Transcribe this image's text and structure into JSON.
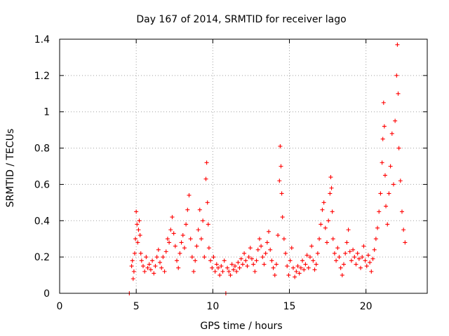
{
  "chart_data": {
    "type": "scatter",
    "title": "Day 167 of 2014, SRMTID for receiver lago",
    "xlabel": "GPS time / hours",
    "ylabel": "SRMTID / TECUs",
    "xlim": [
      0,
      24
    ],
    "ylim": [
      0,
      1.4
    ],
    "x_ticks": [
      0,
      5,
      10,
      15,
      20
    ],
    "x_tick_labels": [
      "0",
      "5",
      "10",
      "15",
      "20"
    ],
    "y_ticks": [
      0,
      0.2,
      0.4,
      0.6,
      0.8,
      1.0,
      1.2,
      1.4
    ],
    "y_tick_labels": [
      "0",
      "0.2",
      "0.4",
      "0.6",
      "0.8",
      "1",
      "1.2",
      "1.4"
    ],
    "grid": true,
    "marker": "+",
    "color": "#ff0000",
    "series": [
      {
        "name": "SRMTID",
        "points": [
          [
            4.55,
            0.0
          ],
          [
            10.85,
            0.0
          ],
          [
            4.7,
            0.15
          ],
          [
            4.75,
            0.18
          ],
          [
            4.8,
            0.08
          ],
          [
            4.85,
            0.12
          ],
          [
            4.9,
            0.22
          ],
          [
            4.95,
            0.3
          ],
          [
            5.0,
            0.45
          ],
          [
            5.05,
            0.38
          ],
          [
            5.1,
            0.28
          ],
          [
            5.15,
            0.35
          ],
          [
            5.2,
            0.4
          ],
          [
            5.25,
            0.32
          ],
          [
            5.3,
            0.22
          ],
          [
            5.35,
            0.18
          ],
          [
            5.45,
            0.15
          ],
          [
            5.55,
            0.12
          ],
          [
            5.65,
            0.2
          ],
          [
            5.75,
            0.14
          ],
          [
            5.85,
            0.16
          ],
          [
            5.95,
            0.13
          ],
          [
            6.05,
            0.18
          ],
          [
            6.15,
            0.11
          ],
          [
            6.25,
            0.15
          ],
          [
            6.35,
            0.2
          ],
          [
            6.45,
            0.24
          ],
          [
            6.55,
            0.17
          ],
          [
            6.65,
            0.14
          ],
          [
            6.75,
            0.2
          ],
          [
            6.85,
            0.12
          ],
          [
            6.95,
            0.23
          ],
          [
            7.05,
            0.3
          ],
          [
            7.15,
            0.28
          ],
          [
            7.25,
            0.35
          ],
          [
            7.35,
            0.42
          ],
          [
            7.45,
            0.33
          ],
          [
            7.55,
            0.26
          ],
          [
            7.65,
            0.18
          ],
          [
            7.75,
            0.14
          ],
          [
            7.85,
            0.22
          ],
          [
            7.95,
            0.28
          ],
          [
            8.05,
            0.32
          ],
          [
            8.15,
            0.25
          ],
          [
            8.25,
            0.38
          ],
          [
            8.35,
            0.46
          ],
          [
            8.45,
            0.54
          ],
          [
            8.55,
            0.3
          ],
          [
            8.65,
            0.2
          ],
          [
            8.75,
            0.12
          ],
          [
            8.85,
            0.18
          ],
          [
            8.95,
            0.26
          ],
          [
            9.05,
            0.35
          ],
          [
            9.15,
            0.46
          ],
          [
            9.25,
            0.3
          ],
          [
            9.35,
            0.4
          ],
          [
            9.45,
            0.2
          ],
          [
            9.55,
            0.63
          ],
          [
            9.6,
            0.72
          ],
          [
            9.65,
            0.5
          ],
          [
            9.7,
            0.38
          ],
          [
            9.75,
            0.25
          ],
          [
            9.85,
            0.18
          ],
          [
            9.95,
            0.14
          ],
          [
            10.05,
            0.2
          ],
          [
            10.15,
            0.12
          ],
          [
            10.25,
            0.16
          ],
          [
            10.35,
            0.14
          ],
          [
            10.45,
            0.1
          ],
          [
            10.55,
            0.15
          ],
          [
            10.65,
            0.12
          ],
          [
            10.75,
            0.18
          ],
          [
            10.95,
            0.14
          ],
          [
            11.05,
            0.12
          ],
          [
            11.15,
            0.1
          ],
          [
            11.25,
            0.16
          ],
          [
            11.35,
            0.13
          ],
          [
            11.45,
            0.15
          ],
          [
            11.55,
            0.12
          ],
          [
            11.65,
            0.17
          ],
          [
            11.75,
            0.14
          ],
          [
            11.85,
            0.19
          ],
          [
            11.95,
            0.16
          ],
          [
            12.05,
            0.22
          ],
          [
            12.15,
            0.18
          ],
          [
            12.25,
            0.15
          ],
          [
            12.35,
            0.2
          ],
          [
            12.45,
            0.25
          ],
          [
            12.55,
            0.19
          ],
          [
            12.65,
            0.16
          ],
          [
            12.75,
            0.12
          ],
          [
            12.85,
            0.18
          ],
          [
            12.95,
            0.24
          ],
          [
            13.05,
            0.3
          ],
          [
            13.15,
            0.26
          ],
          [
            13.25,
            0.2
          ],
          [
            13.35,
            0.16
          ],
          [
            13.45,
            0.22
          ],
          [
            13.55,
            0.28
          ],
          [
            13.65,
            0.34
          ],
          [
            13.75,
            0.24
          ],
          [
            13.85,
            0.18
          ],
          [
            13.95,
            0.14
          ],
          [
            14.05,
            0.1
          ],
          [
            14.15,
            0.16
          ],
          [
            14.25,
            0.32
          ],
          [
            14.35,
            0.62
          ],
          [
            14.4,
            0.81
          ],
          [
            14.45,
            0.7
          ],
          [
            14.5,
            0.55
          ],
          [
            14.55,
            0.42
          ],
          [
            14.65,
            0.3
          ],
          [
            14.75,
            0.22
          ],
          [
            14.85,
            0.15
          ],
          [
            14.95,
            0.1
          ],
          [
            15.05,
            0.18
          ],
          [
            15.15,
            0.25
          ],
          [
            15.25,
            0.14
          ],
          [
            15.35,
            0.09
          ],
          [
            15.45,
            0.12
          ],
          [
            15.55,
            0.15
          ],
          [
            15.65,
            0.11
          ],
          [
            15.75,
            0.14
          ],
          [
            15.85,
            0.18
          ],
          [
            15.95,
            0.13
          ],
          [
            16.05,
            0.16
          ],
          [
            16.15,
            0.21
          ],
          [
            16.25,
            0.14
          ],
          [
            16.35,
            0.2
          ],
          [
            16.45,
            0.26
          ],
          [
            16.55,
            0.18
          ],
          [
            16.65,
            0.13
          ],
          [
            16.75,
            0.16
          ],
          [
            16.85,
            0.22
          ],
          [
            16.95,
            0.3
          ],
          [
            17.05,
            0.38
          ],
          [
            17.15,
            0.46
          ],
          [
            17.25,
            0.5
          ],
          [
            17.35,
            0.36
          ],
          [
            17.45,
            0.28
          ],
          [
            17.55,
            0.4
          ],
          [
            17.65,
            0.55
          ],
          [
            17.7,
            0.64
          ],
          [
            17.75,
            0.58
          ],
          [
            17.8,
            0.45
          ],
          [
            17.85,
            0.3
          ],
          [
            17.95,
            0.22
          ],
          [
            18.05,
            0.18
          ],
          [
            18.15,
            0.25
          ],
          [
            18.25,
            0.2
          ],
          [
            18.35,
            0.14
          ],
          [
            18.45,
            0.1
          ],
          [
            18.55,
            0.16
          ],
          [
            18.65,
            0.22
          ],
          [
            18.75,
            0.28
          ],
          [
            18.85,
            0.35
          ],
          [
            18.95,
            0.23
          ],
          [
            19.05,
            0.18
          ],
          [
            19.15,
            0.24
          ],
          [
            19.25,
            0.2
          ],
          [
            19.35,
            0.16
          ],
          [
            19.45,
            0.22
          ],
          [
            19.55,
            0.19
          ],
          [
            19.65,
            0.14
          ],
          [
            19.75,
            0.2
          ],
          [
            19.85,
            0.26
          ],
          [
            19.95,
            0.18
          ],
          [
            20.05,
            0.15
          ],
          [
            20.15,
            0.21
          ],
          [
            20.25,
            0.17
          ],
          [
            20.35,
            0.12
          ],
          [
            20.45,
            0.19
          ],
          [
            20.55,
            0.24
          ],
          [
            20.65,
            0.3
          ],
          [
            20.75,
            0.36
          ],
          [
            20.85,
            0.45
          ],
          [
            20.95,
            0.55
          ],
          [
            21.05,
            0.72
          ],
          [
            21.1,
            0.85
          ],
          [
            21.15,
            1.05
          ],
          [
            21.2,
            0.92
          ],
          [
            21.25,
            0.65
          ],
          [
            21.3,
            0.48
          ],
          [
            21.4,
            0.38
          ],
          [
            21.5,
            0.55
          ],
          [
            21.6,
            0.7
          ],
          [
            21.7,
            0.88
          ],
          [
            21.8,
            0.6
          ],
          [
            21.9,
            0.95
          ],
          [
            22.0,
            1.2
          ],
          [
            22.05,
            1.37
          ],
          [
            22.1,
            1.1
          ],
          [
            22.15,
            0.8
          ],
          [
            22.25,
            0.62
          ],
          [
            22.35,
            0.45
          ],
          [
            22.45,
            0.35
          ],
          [
            22.55,
            0.28
          ]
        ]
      }
    ]
  }
}
